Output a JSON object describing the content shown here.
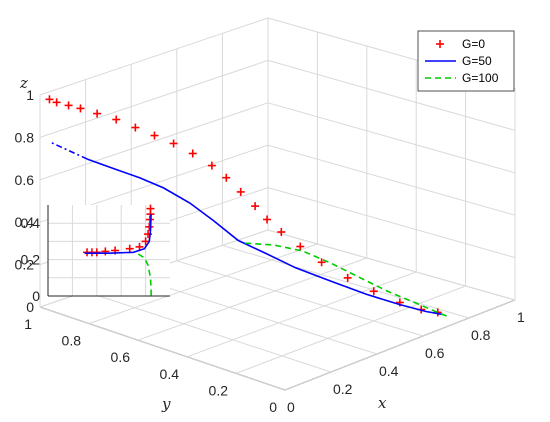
{
  "chart_data": {
    "type": "line",
    "view": "3d",
    "axes": {
      "x": {
        "label": "x",
        "ticks": [
          "0",
          "0.2",
          "0.4",
          "0.6",
          "0.8",
          "1"
        ],
        "range": [
          0,
          1
        ]
      },
      "y": {
        "label": "y",
        "ticks": [
          "0",
          "0.2",
          "0.4",
          "0.6",
          "0.8",
          "1"
        ],
        "range": [
          0,
          1
        ]
      },
      "z": {
        "label": "z",
        "ticks": [
          "0",
          "0.2",
          "0.4",
          "0.6",
          "0.8",
          "1"
        ],
        "range": [
          0,
          1
        ]
      }
    },
    "grid": true,
    "legend": {
      "position": "top-right",
      "labels": [
        "G=0",
        "G=50",
        "G=100"
      ]
    },
    "series": [
      {
        "name": "G=0",
        "color": "#ff0000",
        "style": "plus-markers",
        "points": [
          {
            "x": 0.02,
            "y": 0.98,
            "z": 0.98
          },
          {
            "x": 0.03,
            "y": 0.96,
            "z": 0.97
          },
          {
            "x": 0.05,
            "y": 0.93,
            "z": 0.96
          },
          {
            "x": 0.07,
            "y": 0.9,
            "z": 0.95
          },
          {
            "x": 0.1,
            "y": 0.86,
            "z": 0.93
          },
          {
            "x": 0.13,
            "y": 0.81,
            "z": 0.91
          },
          {
            "x": 0.16,
            "y": 0.76,
            "z": 0.88
          },
          {
            "x": 0.19,
            "y": 0.71,
            "z": 0.85
          },
          {
            "x": 0.22,
            "y": 0.66,
            "z": 0.82
          },
          {
            "x": 0.25,
            "y": 0.61,
            "z": 0.78
          },
          {
            "x": 0.28,
            "y": 0.56,
            "z": 0.73
          },
          {
            "x": 0.3,
            "y": 0.52,
            "z": 0.68
          },
          {
            "x": 0.32,
            "y": 0.48,
            "z": 0.62
          },
          {
            "x": 0.34,
            "y": 0.44,
            "z": 0.56
          },
          {
            "x": 0.36,
            "y": 0.41,
            "z": 0.5
          },
          {
            "x": 0.39,
            "y": 0.38,
            "z": 0.44
          },
          {
            "x": 0.43,
            "y": 0.34,
            "z": 0.37
          },
          {
            "x": 0.48,
            "y": 0.3,
            "z": 0.29
          },
          {
            "x": 0.54,
            "y": 0.25,
            "z": 0.21
          },
          {
            "x": 0.6,
            "y": 0.2,
            "z": 0.14
          },
          {
            "x": 0.66,
            "y": 0.15,
            "z": 0.08
          },
          {
            "x": 0.71,
            "y": 0.11,
            "z": 0.04
          },
          {
            "x": 0.75,
            "y": 0.08,
            "z": 0.02
          }
        ]
      },
      {
        "name": "G=50",
        "color": "#0000ff",
        "style": "solid",
        "points": [
          {
            "x": 0.1,
            "y": 0.9,
            "z": 0.7
          },
          {
            "x": 0.15,
            "y": 0.84,
            "z": 0.66
          },
          {
            "x": 0.2,
            "y": 0.78,
            "z": 0.62
          },
          {
            "x": 0.24,
            "y": 0.72,
            "z": 0.58
          },
          {
            "x": 0.28,
            "y": 0.65,
            "z": 0.52
          },
          {
            "x": 0.31,
            "y": 0.58,
            "z": 0.45
          },
          {
            "x": 0.33,
            "y": 0.5,
            "z": 0.38
          },
          {
            "x": 0.37,
            "y": 0.42,
            "z": 0.33
          },
          {
            "x": 0.42,
            "y": 0.35,
            "z": 0.27
          },
          {
            "x": 0.5,
            "y": 0.28,
            "z": 0.2
          },
          {
            "x": 0.58,
            "y": 0.21,
            "z": 0.13
          },
          {
            "x": 0.66,
            "y": 0.15,
            "z": 0.07
          },
          {
            "x": 0.72,
            "y": 0.1,
            "z": 0.03
          },
          {
            "x": 0.76,
            "y": 0.07,
            "z": 0.01
          }
        ]
      },
      {
        "name": "G=100",
        "color": "#00cc00",
        "style": "dashed",
        "points": [
          {
            "x": 0.34,
            "y": 0.48,
            "z": 0.37
          },
          {
            "x": 0.4,
            "y": 0.42,
            "z": 0.36
          },
          {
            "x": 0.46,
            "y": 0.36,
            "z": 0.33
          },
          {
            "x": 0.52,
            "y": 0.3,
            "z": 0.27
          },
          {
            "x": 0.58,
            "y": 0.24,
            "z": 0.2
          },
          {
            "x": 0.64,
            "y": 0.18,
            "z": 0.13
          },
          {
            "x": 0.7,
            "y": 0.12,
            "z": 0.07
          },
          {
            "x": 0.75,
            "y": 0.08,
            "z": 0.02
          },
          {
            "x": 0.77,
            "y": 0.06,
            "z": 0.0
          }
        ]
      }
    ],
    "inset": {
      "ticks_y": [
        "0",
        "0.2",
        "0.4"
      ],
      "ylim": [
        0,
        0.5
      ],
      "xlim": [
        0,
        1
      ],
      "series": [
        {
          "name": "G=0",
          "color": "#ff0000",
          "style": "plus-markers",
          "points": [
            [
              0.32,
              0.24
            ],
            [
              0.36,
              0.24
            ],
            [
              0.4,
              0.24
            ],
            [
              0.47,
              0.245
            ],
            [
              0.55,
              0.25
            ],
            [
              0.67,
              0.26
            ],
            [
              0.75,
              0.27
            ],
            [
              0.8,
              0.3
            ],
            [
              0.82,
              0.34
            ],
            [
              0.83,
              0.38
            ],
            [
              0.835,
              0.42
            ],
            [
              0.84,
              0.45
            ],
            [
              0.84,
              0.48
            ]
          ]
        },
        {
          "name": "G=50",
          "color": "#0000ff",
          "style": "solid",
          "points": [
            [
              0.3,
              0.235
            ],
            [
              0.5,
              0.235
            ],
            [
              0.7,
              0.24
            ],
            [
              0.79,
              0.26
            ],
            [
              0.83,
              0.3
            ],
            [
              0.84,
              0.36
            ],
            [
              0.845,
              0.45
            ]
          ]
        },
        {
          "name": "G=100",
          "color": "#00cc00",
          "style": "dashed",
          "points": [
            [
              0.74,
              0.23
            ],
            [
              0.79,
              0.21
            ],
            [
              0.82,
              0.17
            ],
            [
              0.84,
              0.1
            ],
            [
              0.845,
              0.03
            ],
            [
              0.845,
              0.0
            ]
          ]
        }
      ]
    }
  }
}
